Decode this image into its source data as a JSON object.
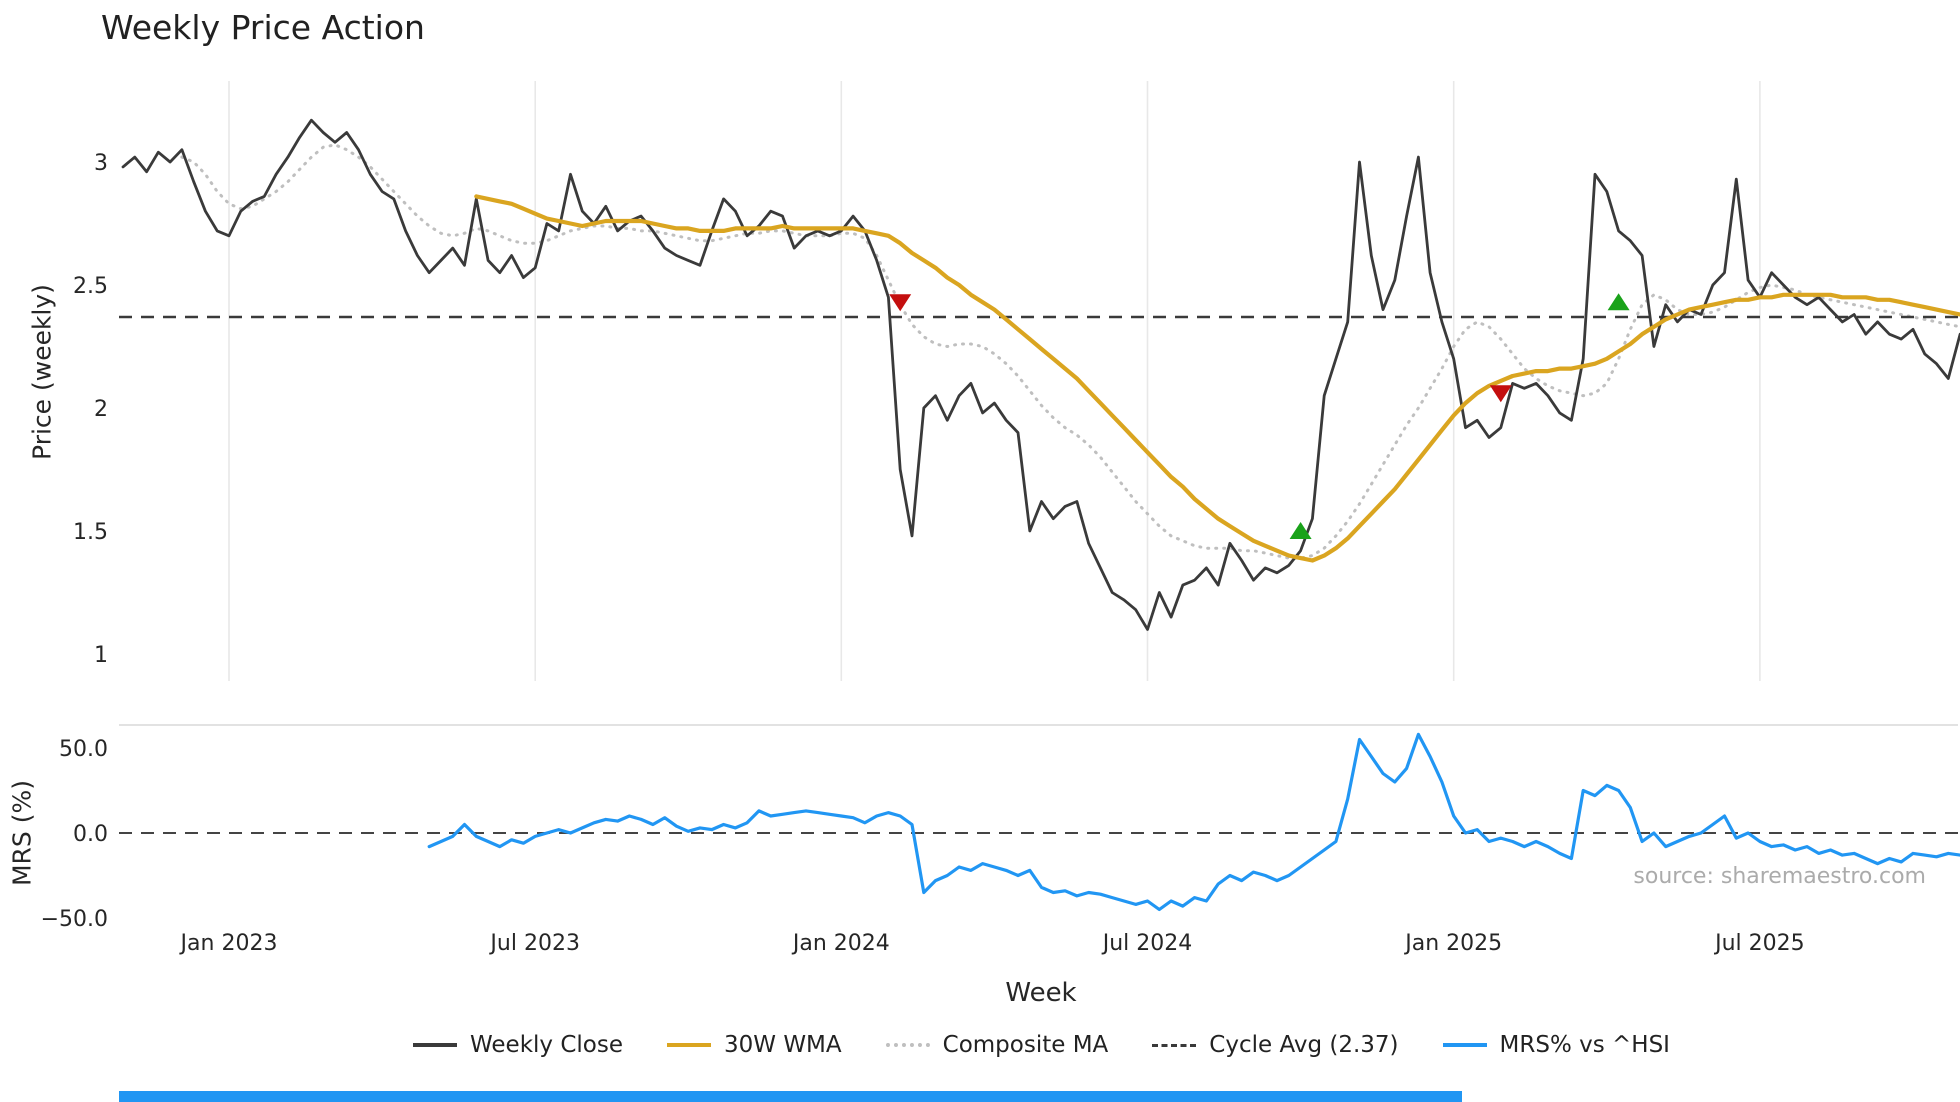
{
  "title": "Weekly Price Action",
  "source_credit": "source: sharemaestro.com",
  "colors": {
    "weekly_close": "#3a3a3a",
    "wma": "#DAA520",
    "composite": "#bfbfbf",
    "cycle_dash": "#3a3a3a",
    "mrs": "#2196f3",
    "buy": "#1aa21a",
    "sell": "#c40f0f",
    "grid": "#e8e8e8",
    "panel_border": "#d9d9d9",
    "text": "#262626",
    "source": "#ababab"
  },
  "legend": {
    "items": [
      {
        "label": "Weekly Close",
        "color": "#3a3a3a",
        "style": "solid"
      },
      {
        "label": "30W WMA",
        "color": "#DAA520",
        "style": "solid"
      },
      {
        "label": "Composite MA",
        "color": "#bfbfbf",
        "style": "dotted"
      },
      {
        "label": "Cycle Avg (2.37)",
        "color": "#3a3a3a",
        "style": "dashed"
      },
      {
        "label": "MRS% vs ^HSI",
        "color": "#2196f3",
        "style": "solid"
      }
    ]
  },
  "chart_data": {
    "type": "line",
    "title": "Weekly Price Action",
    "xlabel": "Week",
    "x_tick_labels": [
      "Jan 2023",
      "Jul 2023",
      "Jan 2024",
      "Jul 2024",
      "Jan 2025",
      "Jul 2025"
    ],
    "x_tick_week_indices": [
      9,
      35,
      61,
      87,
      113,
      139
    ],
    "total_weeks": 157,
    "grid": "vertical-only",
    "legend_position": "bottom-center",
    "panels": [
      {
        "name": "price",
        "ylabel": "Price (weekly)",
        "ylim": [
          0.93,
          3.33
        ],
        "ytick_values": [
          3,
          2.5,
          2,
          1.5,
          1
        ],
        "ytick_labels": [
          "3",
          "2.5",
          "2",
          "1.5",
          "1"
        ],
        "cycle_average": 2.37,
        "series": [
          {
            "name": "Weekly Close",
            "style": "solid",
            "color": "#3a3a3a",
            "start_week": 0,
            "values": [
              2.98,
              3.02,
              2.96,
              3.04,
              3.0,
              3.05,
              2.92,
              2.8,
              2.72,
              2.7,
              2.8,
              2.84,
              2.86,
              2.95,
              3.02,
              3.1,
              3.17,
              3.12,
              3.08,
              3.12,
              3.05,
              2.95,
              2.88,
              2.85,
              2.72,
              2.62,
              2.55,
              2.6,
              2.65,
              2.58,
              2.85,
              2.6,
              2.55,
              2.62,
              2.53,
              2.57,
              2.75,
              2.72,
              2.95,
              2.8,
              2.75,
              2.82,
              2.72,
              2.76,
              2.78,
              2.72,
              2.65,
              2.62,
              2.6,
              2.58,
              2.72,
              2.85,
              2.8,
              2.7,
              2.74,
              2.8,
              2.78,
              2.65,
              2.7,
              2.72,
              2.7,
              2.72,
              2.78,
              2.72,
              2.6,
              2.45,
              1.75,
              1.48,
              2.0,
              2.05,
              1.95,
              2.05,
              2.1,
              1.98,
              2.02,
              1.95,
              1.9,
              1.5,
              1.62,
              1.55,
              1.6,
              1.62,
              1.45,
              1.35,
              1.25,
              1.22,
              1.18,
              1.1,
              1.25,
              1.15,
              1.28,
              1.3,
              1.35,
              1.28,
              1.45,
              1.38,
              1.3,
              1.35,
              1.33,
              1.36,
              1.42,
              1.55,
              2.05,
              2.2,
              2.35,
              3.0,
              2.62,
              2.4,
              2.52,
              2.78,
              3.02,
              2.55,
              2.35,
              2.2,
              1.92,
              1.95,
              1.88,
              1.92,
              2.1,
              2.08,
              2.1,
              2.05,
              1.98,
              1.95,
              2.2,
              2.95,
              2.88,
              2.72,
              2.68,
              2.62,
              2.25,
              2.42,
              2.35,
              2.4,
              2.38,
              2.5,
              2.55,
              2.93,
              2.52,
              2.45,
              2.55,
              2.5,
              2.45,
              2.42,
              2.45,
              2.4,
              2.35,
              2.38,
              2.3,
              2.35,
              2.3,
              2.28,
              2.32,
              2.22,
              2.18,
              2.12,
              2.3
            ]
          },
          {
            "name": "30W WMA",
            "style": "solid",
            "color": "#DAA520",
            "start_week": 30,
            "values": [
              2.86,
              2.85,
              2.84,
              2.83,
              2.81,
              2.79,
              2.77,
              2.76,
              2.75,
              2.74,
              2.75,
              2.76,
              2.76,
              2.76,
              2.76,
              2.75,
              2.74,
              2.73,
              2.73,
              2.72,
              2.72,
              2.72,
              2.73,
              2.73,
              2.73,
              2.73,
              2.74,
              2.73,
              2.73,
              2.73,
              2.73,
              2.73,
              2.73,
              2.72,
              2.71,
              2.7,
              2.67,
              2.63,
              2.6,
              2.57,
              2.53,
              2.5,
              2.46,
              2.43,
              2.4,
              2.36,
              2.32,
              2.28,
              2.24,
              2.2,
              2.16,
              2.12,
              2.07,
              2.02,
              1.97,
              1.92,
              1.87,
              1.82,
              1.77,
              1.72,
              1.68,
              1.63,
              1.59,
              1.55,
              1.52,
              1.49,
              1.46,
              1.44,
              1.42,
              1.4,
              1.39,
              1.38,
              1.4,
              1.43,
              1.47,
              1.52,
              1.57,
              1.62,
              1.67,
              1.73,
              1.79,
              1.85,
              1.91,
              1.97,
              2.02,
              2.06,
              2.09,
              2.11,
              2.13,
              2.14,
              2.15,
              2.15,
              2.16,
              2.16,
              2.17,
              2.18,
              2.2,
              2.23,
              2.26,
              2.3,
              2.33,
              2.36,
              2.38,
              2.4,
              2.41,
              2.42,
              2.43,
              2.44,
              2.44,
              2.45,
              2.45,
              2.46,
              2.46,
              2.46,
              2.46,
              2.46,
              2.45,
              2.45,
              2.45,
              2.44,
              2.44,
              2.43,
              2.42,
              2.41,
              2.4,
              2.39,
              2.38
            ]
          },
          {
            "name": "Composite MA",
            "style": "dotted",
            "color": "#bfbfbf",
            "start_week": 5,
            "values": [
              3.02,
              3.0,
              2.95,
              2.88,
              2.83,
              2.81,
              2.82,
              2.85,
              2.88,
              2.92,
              2.97,
              3.02,
              3.06,
              3.07,
              3.05,
              3.02,
              2.98,
              2.93,
              2.88,
              2.83,
              2.78,
              2.74,
              2.71,
              2.7,
              2.71,
              2.73,
              2.72,
              2.7,
              2.68,
              2.67,
              2.67,
              2.68,
              2.7,
              2.72,
              2.73,
              2.74,
              2.74,
              2.73,
              2.73,
              2.72,
              2.72,
              2.71,
              2.7,
              2.69,
              2.68,
              2.68,
              2.69,
              2.7,
              2.71,
              2.71,
              2.72,
              2.72,
              2.71,
              2.7,
              2.7,
              2.7,
              2.71,
              2.71,
              2.69,
              2.62,
              2.52,
              2.42,
              2.34,
              2.29,
              2.26,
              2.25,
              2.26,
              2.26,
              2.25,
              2.22,
              2.18,
              2.13,
              2.07,
              2.01,
              1.96,
              1.92,
              1.89,
              1.85,
              1.8,
              1.74,
              1.68,
              1.62,
              1.57,
              1.52,
              1.48,
              1.46,
              1.44,
              1.43,
              1.43,
              1.43,
              1.42,
              1.42,
              1.41,
              1.4,
              1.39,
              1.39,
              1.4,
              1.43,
              1.48,
              1.54,
              1.61,
              1.69,
              1.77,
              1.85,
              1.93,
              2.0,
              2.08,
              2.16,
              2.25,
              2.32,
              2.35,
              2.33,
              2.28,
              2.22,
              2.16,
              2.12,
              2.09,
              2.07,
              2.06,
              2.05,
              2.06,
              2.1,
              2.2,
              2.32,
              2.42,
              2.46,
              2.44,
              2.4,
              2.38,
              2.38,
              2.39,
              2.41,
              2.44,
              2.47,
              2.49,
              2.5,
              2.49,
              2.48,
              2.46,
              2.45,
              2.44,
              2.43,
              2.42,
              2.41,
              2.4,
              2.39,
              2.38,
              2.37,
              2.36,
              2.35,
              2.34,
              2.33
            ]
          },
          {
            "name": "Cycle Avg (2.37)",
            "style": "dashed",
            "color": "#3a3a3a",
            "constant": 2.37
          }
        ],
        "signals": [
          {
            "week": 66,
            "value": 2.43,
            "type": "sell"
          },
          {
            "week": 100,
            "value": 1.5,
            "type": "buy"
          },
          {
            "week": 117,
            "value": 2.06,
            "type": "sell"
          },
          {
            "week": 127,
            "value": 2.43,
            "type": "buy"
          }
        ]
      },
      {
        "name": "mrs",
        "ylabel": "MRS (%)",
        "ylim": [
          -58,
          64
        ],
        "ytick_values": [
          50,
          0,
          -50
        ],
        "ytick_labels": [
          "50.0",
          "0.0",
          "−50.0"
        ],
        "series": [
          {
            "name": "MRS% vs ^HSI",
            "style": "solid",
            "color": "#2196f3",
            "start_week": 26,
            "values": [
              -8,
              -5,
              -2,
              5,
              -2,
              -5,
              -8,
              -4,
              -6,
              -2,
              0,
              2,
              0,
              3,
              6,
              8,
              7,
              10,
              8,
              5,
              9,
              4,
              1,
              3,
              2,
              5,
              3,
              6,
              13,
              10,
              11,
              12,
              13,
              12,
              11,
              10,
              9,
              6,
              10,
              12,
              10,
              5,
              -35,
              -28,
              -25,
              -20,
              -22,
              -18,
              -20,
              -22,
              -25,
              -22,
              -32,
              -35,
              -34,
              -37,
              -35,
              -36,
              -38,
              -40,
              -42,
              -40,
              -45,
              -40,
              -43,
              -38,
              -40,
              -30,
              -25,
              -28,
              -23,
              -25,
              -28,
              -25,
              -20,
              -15,
              -10,
              -5,
              20,
              55,
              45,
              35,
              30,
              38,
              58,
              45,
              30,
              10,
              0,
              2,
              -5,
              -3,
              -5,
              -8,
              -5,
              -8,
              -12,
              -15,
              25,
              22,
              28,
              25,
              15,
              -5,
              0,
              -8,
              -5,
              -2,
              0,
              5,
              10,
              -3,
              0,
              -5,
              -8,
              -7,
              -10,
              -8,
              -12,
              -10,
              -13,
              -12,
              -15,
              -18,
              -15,
              -17,
              -12,
              -13,
              -14,
              -12,
              -13
            ]
          },
          {
            "name": "Zero line",
            "style": "dashed",
            "color": "#444444",
            "constant": 0
          }
        ]
      }
    ]
  }
}
